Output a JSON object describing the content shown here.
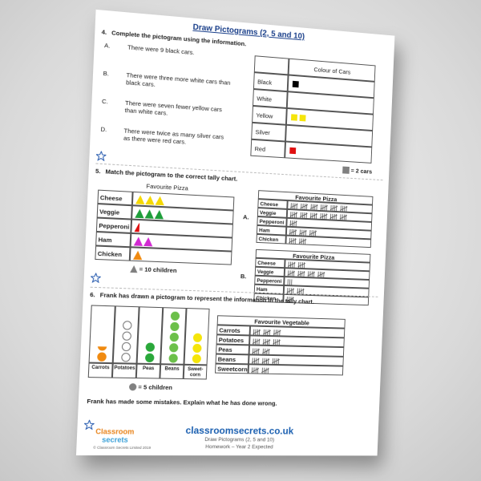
{
  "header": {
    "title": "Draw Pictograms (2, 5 and 10)"
  },
  "q4": {
    "number": "4.",
    "prompt": "Complete the pictogram using the information.",
    "statements": [
      {
        "letter": "A.",
        "text": "There were 9 black cars."
      },
      {
        "letter": "B.",
        "text": "There were three more white cars than black cars."
      },
      {
        "letter": "C.",
        "text": "There were seven fewer yellow cars than white cars."
      },
      {
        "letter": "D.",
        "text": "There were twice as many silver cars as there were red cars."
      }
    ],
    "chart": {
      "title": "Colour of Cars",
      "rows": [
        {
          "label": "Black",
          "count": 1,
          "color": "#000000"
        },
        {
          "label": "White",
          "count": 0,
          "color": "#ffffff"
        },
        {
          "label": "Yellow",
          "count": 2,
          "color": "#f5e50a"
        },
        {
          "label": "Silver",
          "count": 0,
          "color": "#aaaaaa"
        },
        {
          "label": "Red",
          "count": 1,
          "color": "#e01010"
        }
      ],
      "key": "= 2 cars",
      "key_color": "#808080"
    }
  },
  "q5": {
    "number": "5.",
    "prompt": "Match the pictogram to the correct tally chart.",
    "chart": {
      "title": "Favourite Pizza",
      "rows": [
        {
          "label": "Cheese",
          "count": 3,
          "color": "#f5d800"
        },
        {
          "label": "Veggie",
          "count": 3,
          "color": "#1e9e3a"
        },
        {
          "label": "Pepperoni",
          "count": 0.5,
          "color": "#e01010"
        },
        {
          "label": "Ham",
          "count": 2,
          "color": "#d22ad2"
        },
        {
          "label": "Chicken",
          "count": 1,
          "color": "#f08a10"
        }
      ],
      "key": "= 10 children",
      "key_color": "#808080"
    },
    "tallies": [
      {
        "letter": "A.",
        "title": "Favourite Pizza",
        "rows": [
          {
            "label": "Cheese",
            "count": 30
          },
          {
            "label": "Veggie",
            "count": 30
          },
          {
            "label": "Pepperoni",
            "count": 5
          },
          {
            "label": "Ham",
            "count": 15
          },
          {
            "label": "Chicken",
            "count": 10
          }
        ]
      },
      {
        "letter": "B.",
        "title": "Favourite Pizza",
        "rows": [
          {
            "label": "Cheese",
            "count": 10
          },
          {
            "label": "Veggie",
            "count": 20
          },
          {
            "label": "Pepperoni",
            "count": 3
          },
          {
            "label": "Ham",
            "count": 10
          },
          {
            "label": "Chicken",
            "count": 5
          }
        ]
      }
    ]
  },
  "q6": {
    "number": "6.",
    "prompt": "Frank has drawn a pictogram to represent the information in the tally chart.",
    "chart": {
      "columns": [
        {
          "label": "Carrots",
          "count": 1.5,
          "color": "#f08a10"
        },
        {
          "label": "Potatoes",
          "count": 4,
          "color": "#ffffff"
        },
        {
          "label": "Peas",
          "count": 2,
          "color": "#2aa83a"
        },
        {
          "label": "Beans",
          "count": 5,
          "color": "#6cc04a"
        },
        {
          "label": "Sweet-corn",
          "count": 3,
          "color": "#f5e50a"
        }
      ],
      "key": "= 5 children",
      "key_color": "#808080"
    },
    "tally": {
      "title": "Favourite Vegetable",
      "rows": [
        {
          "label": "Carrots",
          "count": 15
        },
        {
          "label": "Potatoes",
          "count": 15
        },
        {
          "label": "Peas",
          "count": 10
        },
        {
          "label": "Beans",
          "count": 15
        },
        {
          "label": "Sweetcorn",
          "count": 10
        }
      ]
    },
    "question": "Frank has made some mistakes.  Explain what he has done wrong."
  },
  "footer": {
    "brand": "Classroom",
    "brand2": "secrets",
    "copyright": "© Classroom Secrets Limited 2019",
    "site": "classroomsecrets.co.uk",
    "subtitle": "Draw Pictograms (2, 5 and 10)",
    "level": "Homework – Year 2 Expected"
  }
}
